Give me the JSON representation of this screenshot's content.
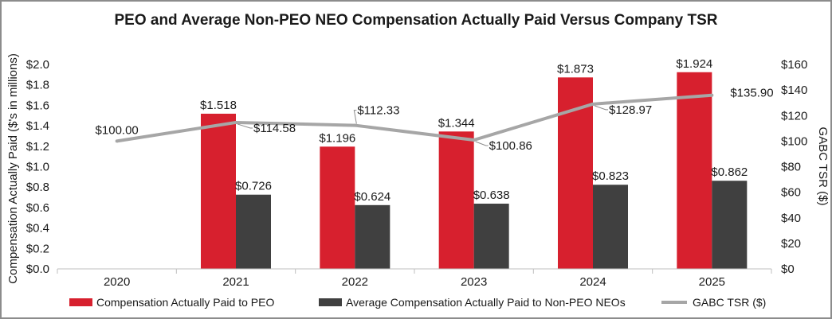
{
  "chart_data": {
    "type": "bar",
    "title": "PEO and Average Non-PEO NEO Compensation Actually Paid Versus Company TSR",
    "categories": [
      "2020",
      "2021",
      "2022",
      "2023",
      "2024",
      "2025"
    ],
    "ylabel": "Compensation Actually Paid ($'s in millions)",
    "y2label": "GABC TSR ($)",
    "ylim": [
      0,
      2.0
    ],
    "y2lim": [
      0,
      160
    ],
    "yticks": [
      "$0.0",
      "$0.2",
      "$0.4",
      "$0.6",
      "$0.8",
      "$1.0",
      "$1.2",
      "$1.4",
      "$1.6",
      "$1.8",
      "$2.0"
    ],
    "y2ticks": [
      "$0",
      "$20",
      "$40",
      "$60",
      "$80",
      "$100",
      "$120",
      "$140",
      "$160"
    ],
    "series": [
      {
        "name": "Compensation Actually Paid to PEO",
        "kind": "bar",
        "color": "#d7202e",
        "values": [
          null,
          1.518,
          1.196,
          1.344,
          1.873,
          1.924
        ],
        "labels": [
          "",
          "$1.518",
          "$1.196",
          "$1.344",
          "$1.873",
          "$1.924"
        ]
      },
      {
        "name": "Average Compensation Actually Paid to Non-PEO NEOs",
        "kind": "bar",
        "color": "#404040",
        "values": [
          null,
          0.726,
          0.624,
          0.638,
          0.823,
          0.862
        ],
        "labels": [
          "",
          "$0.726",
          "$0.624",
          "$0.638",
          "$0.823",
          "$0.862"
        ]
      },
      {
        "name": "GABC TSR ($)",
        "kind": "line",
        "axis": "right",
        "color": "#a6a6a6",
        "values": [
          100.0,
          114.58,
          112.33,
          100.86,
          128.97,
          135.9
        ],
        "labels": [
          "$100.00",
          "$114.58",
          "$112.33",
          "$100.86",
          "$128.97",
          "$135.90"
        ]
      }
    ]
  }
}
